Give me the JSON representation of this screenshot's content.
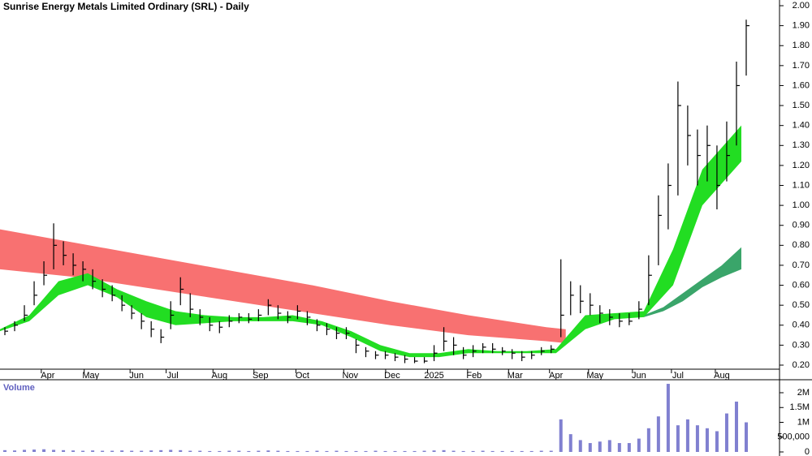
{
  "chart_data": [
    {
      "type": "ohlc",
      "title": "Sunrise Energy Metals Limited Ordinary (SRL) - Daily",
      "color": "#000000",
      "xlim": [
        0,
        77
      ],
      "xticks": [
        {
          "value": 4.9,
          "label": "Apr"
        },
        {
          "value": 9.3,
          "label": "May"
        },
        {
          "value": 14,
          "label": "Jun"
        },
        {
          "value": 17.7,
          "label": "Jul"
        },
        {
          "value": 22.5,
          "label": "Aug"
        },
        {
          "value": 26.7,
          "label": "Sep"
        },
        {
          "value": 31,
          "label": "Oct"
        },
        {
          "value": 35.9,
          "label": "Nov"
        },
        {
          "value": 40.2,
          "label": "Dec"
        },
        {
          "value": 44.5,
          "label": "2025"
        },
        {
          "value": 48.6,
          "label": "Feb"
        },
        {
          "value": 52.8,
          "label": "Mar"
        },
        {
          "value": 57,
          "label": "Apr"
        },
        {
          "value": 61,
          "label": "May"
        },
        {
          "value": 65.5,
          "label": "Jun"
        },
        {
          "value": 69.5,
          "label": "Jul"
        },
        {
          "value": 74,
          "label": "Aug"
        }
      ],
      "ylim": [
        0.15,
        2.02
      ],
      "yticks": [
        {
          "value": 0.2,
          "label": "0.20"
        },
        {
          "value": 0.3,
          "label": "0.30"
        },
        {
          "value": 0.4,
          "label": "0.40"
        },
        {
          "value": 0.5,
          "label": "0.50"
        },
        {
          "value": 0.6,
          "label": "0.60"
        },
        {
          "value": 0.7,
          "label": "0.70"
        },
        {
          "value": 0.8,
          "label": "0.80"
        },
        {
          "value": 0.9,
          "label": "0.90"
        },
        {
          "value": 1.0,
          "label": "1.00"
        },
        {
          "value": 1.1,
          "label": "1.10"
        },
        {
          "value": 1.2,
          "label": "1.20"
        },
        {
          "value": 1.3,
          "label": "1.30"
        },
        {
          "value": 1.4,
          "label": "1.40"
        },
        {
          "value": 1.5,
          "label": "1.50"
        },
        {
          "value": 1.6,
          "label": "1.60"
        },
        {
          "value": 1.7,
          "label": "1.70"
        },
        {
          "value": 1.8,
          "label": "1.80"
        },
        {
          "value": 1.9,
          "label": "1.90"
        },
        {
          "value": 2.0,
          "label": "2.00"
        }
      ],
      "high": [
        0.39,
        0.42,
        0.5,
        0.62,
        0.72,
        0.91,
        0.82,
        0.76,
        0.72,
        0.68,
        0.63,
        0.6,
        0.55,
        0.5,
        0.46,
        0.42,
        0.38,
        0.52,
        0.64,
        0.56,
        0.48,
        0.44,
        0.42,
        0.45,
        0.46,
        0.46,
        0.48,
        0.53,
        0.5,
        0.47,
        0.5,
        0.47,
        0.43,
        0.41,
        0.39,
        0.39,
        0.33,
        0.29,
        0.27,
        0.27,
        0.26,
        0.25,
        0.24,
        0.24,
        0.3,
        0.39,
        0.34,
        0.29,
        0.3,
        0.31,
        0.31,
        0.29,
        0.28,
        0.27,
        0.27,
        0.29,
        0.3,
        0.73,
        0.62,
        0.6,
        0.56,
        0.5,
        0.48,
        0.46,
        0.46,
        0.52,
        0.75,
        1.05,
        1.21,
        1.62,
        1.5,
        1.38,
        1.4,
        1.3,
        1.42,
        1.72,
        1.93
      ],
      "low": [
        0.35,
        0.37,
        0.42,
        0.5,
        0.6,
        0.68,
        0.7,
        0.65,
        0.62,
        0.58,
        0.54,
        0.52,
        0.47,
        0.43,
        0.38,
        0.34,
        0.31,
        0.38,
        0.5,
        0.44,
        0.4,
        0.37,
        0.36,
        0.39,
        0.41,
        0.41,
        0.42,
        0.45,
        0.43,
        0.41,
        0.43,
        0.4,
        0.37,
        0.35,
        0.33,
        0.33,
        0.26,
        0.24,
        0.23,
        0.23,
        0.22,
        0.21,
        0.21,
        0.21,
        0.22,
        0.27,
        0.25,
        0.23,
        0.24,
        0.26,
        0.26,
        0.25,
        0.23,
        0.22,
        0.23,
        0.25,
        0.26,
        0.34,
        0.45,
        0.46,
        0.45,
        0.41,
        0.4,
        0.39,
        0.4,
        0.43,
        0.5,
        0.7,
        0.88,
        1.05,
        1.2,
        1.1,
        1.12,
        0.98,
        1.12,
        1.3,
        1.65
      ],
      "close": [
        0.37,
        0.4,
        0.45,
        0.55,
        0.65,
        0.8,
        0.75,
        0.7,
        0.68,
        0.62,
        0.58,
        0.55,
        0.5,
        0.46,
        0.42,
        0.38,
        0.34,
        0.45,
        0.58,
        0.48,
        0.44,
        0.4,
        0.39,
        0.42,
        0.44,
        0.43,
        0.45,
        0.5,
        0.46,
        0.44,
        0.47,
        0.44,
        0.4,
        0.38,
        0.36,
        0.36,
        0.3,
        0.27,
        0.25,
        0.25,
        0.24,
        0.23,
        0.22,
        0.22,
        0.26,
        0.32,
        0.3,
        0.25,
        0.27,
        0.29,
        0.28,
        0.27,
        0.26,
        0.24,
        0.25,
        0.27,
        0.28,
        0.45,
        0.55,
        0.52,
        0.5,
        0.46,
        0.44,
        0.42,
        0.42,
        0.48,
        0.65,
        0.95,
        1.1,
        1.5,
        1.35,
        1.25,
        1.3,
        1.1,
        1.25,
        1.6,
        1.9
      ],
      "bands": [
        {
          "color": "#f87171",
          "x": [
            0,
            8,
            16,
            24,
            32,
            40,
            48,
            56,
            58
          ],
          "upper": [
            0.88,
            0.81,
            0.74,
            0.67,
            0.6,
            0.52,
            0.45,
            0.39,
            0.38
          ],
          "lower": [
            0.68,
            0.64,
            0.58,
            0.52,
            0.46,
            0.4,
            0.35,
            0.32,
            0.31
          ]
        },
        {
          "color": "#3aa56a",
          "x": [
            66,
            68,
            70,
            72,
            74,
            76
          ],
          "upper": [
            0.45,
            0.49,
            0.56,
            0.63,
            0.7,
            0.79
          ],
          "lower": [
            0.44,
            0.47,
            0.52,
            0.59,
            0.64,
            0.68
          ]
        },
        {
          "color": "#22dd22",
          "x": [
            0,
            3,
            6,
            9,
            12,
            15,
            18,
            21,
            24,
            27,
            30,
            33,
            36,
            39,
            42,
            45,
            48,
            51,
            54,
            57,
            60,
            63,
            66,
            69,
            72,
            76
          ],
          "upper": [
            0.38,
            0.45,
            0.62,
            0.66,
            0.58,
            0.52,
            0.47,
            0.45,
            0.44,
            0.44,
            0.45,
            0.42,
            0.37,
            0.3,
            0.26,
            0.26,
            0.28,
            0.27,
            0.27,
            0.28,
            0.45,
            0.46,
            0.47,
            0.78,
            1.18,
            1.4
          ],
          "lower": [
            0.37,
            0.42,
            0.55,
            0.6,
            0.54,
            0.44,
            0.4,
            0.41,
            0.42,
            0.42,
            0.42,
            0.4,
            0.34,
            0.27,
            0.24,
            0.24,
            0.26,
            0.26,
            0.26,
            0.26,
            0.38,
            0.43,
            0.44,
            0.6,
            1.0,
            1.22
          ]
        }
      ]
    },
    {
      "type": "bar",
      "title": "Volume",
      "color": "#8080d0",
      "xlim": [
        0,
        77
      ],
      "ylim": [
        0,
        2400000
      ],
      "yticks": [
        0,
        {
          "value": 500000,
          "label": "500,000"
        },
        {
          "value": 1000000,
          "label": "1M"
        },
        {
          "value": 1500000,
          "label": "1.5M"
        },
        {
          "value": 2000000,
          "label": "2M"
        }
      ],
      "values": [
        60000,
        50000,
        70000,
        80000,
        90000,
        70000,
        60000,
        50000,
        40000,
        50000,
        40000,
        40000,
        50000,
        40000,
        40000,
        50000,
        60000,
        70000,
        60000,
        40000,
        40000,
        30000,
        30000,
        40000,
        40000,
        30000,
        40000,
        50000,
        40000,
        30000,
        30000,
        30000,
        40000,
        30000,
        40000,
        30000,
        30000,
        30000,
        40000,
        30000,
        30000,
        30000,
        30000,
        40000,
        50000,
        60000,
        40000,
        30000,
        30000,
        40000,
        30000,
        30000,
        30000,
        30000,
        30000,
        40000,
        40000,
        1100000,
        600000,
        400000,
        300000,
        350000,
        400000,
        300000,
        300000,
        450000,
        800000,
        1200000,
        2300000,
        900000,
        1100000,
        900000,
        800000,
        700000,
        1300000,
        1700000,
        1000000
      ]
    }
  ]
}
